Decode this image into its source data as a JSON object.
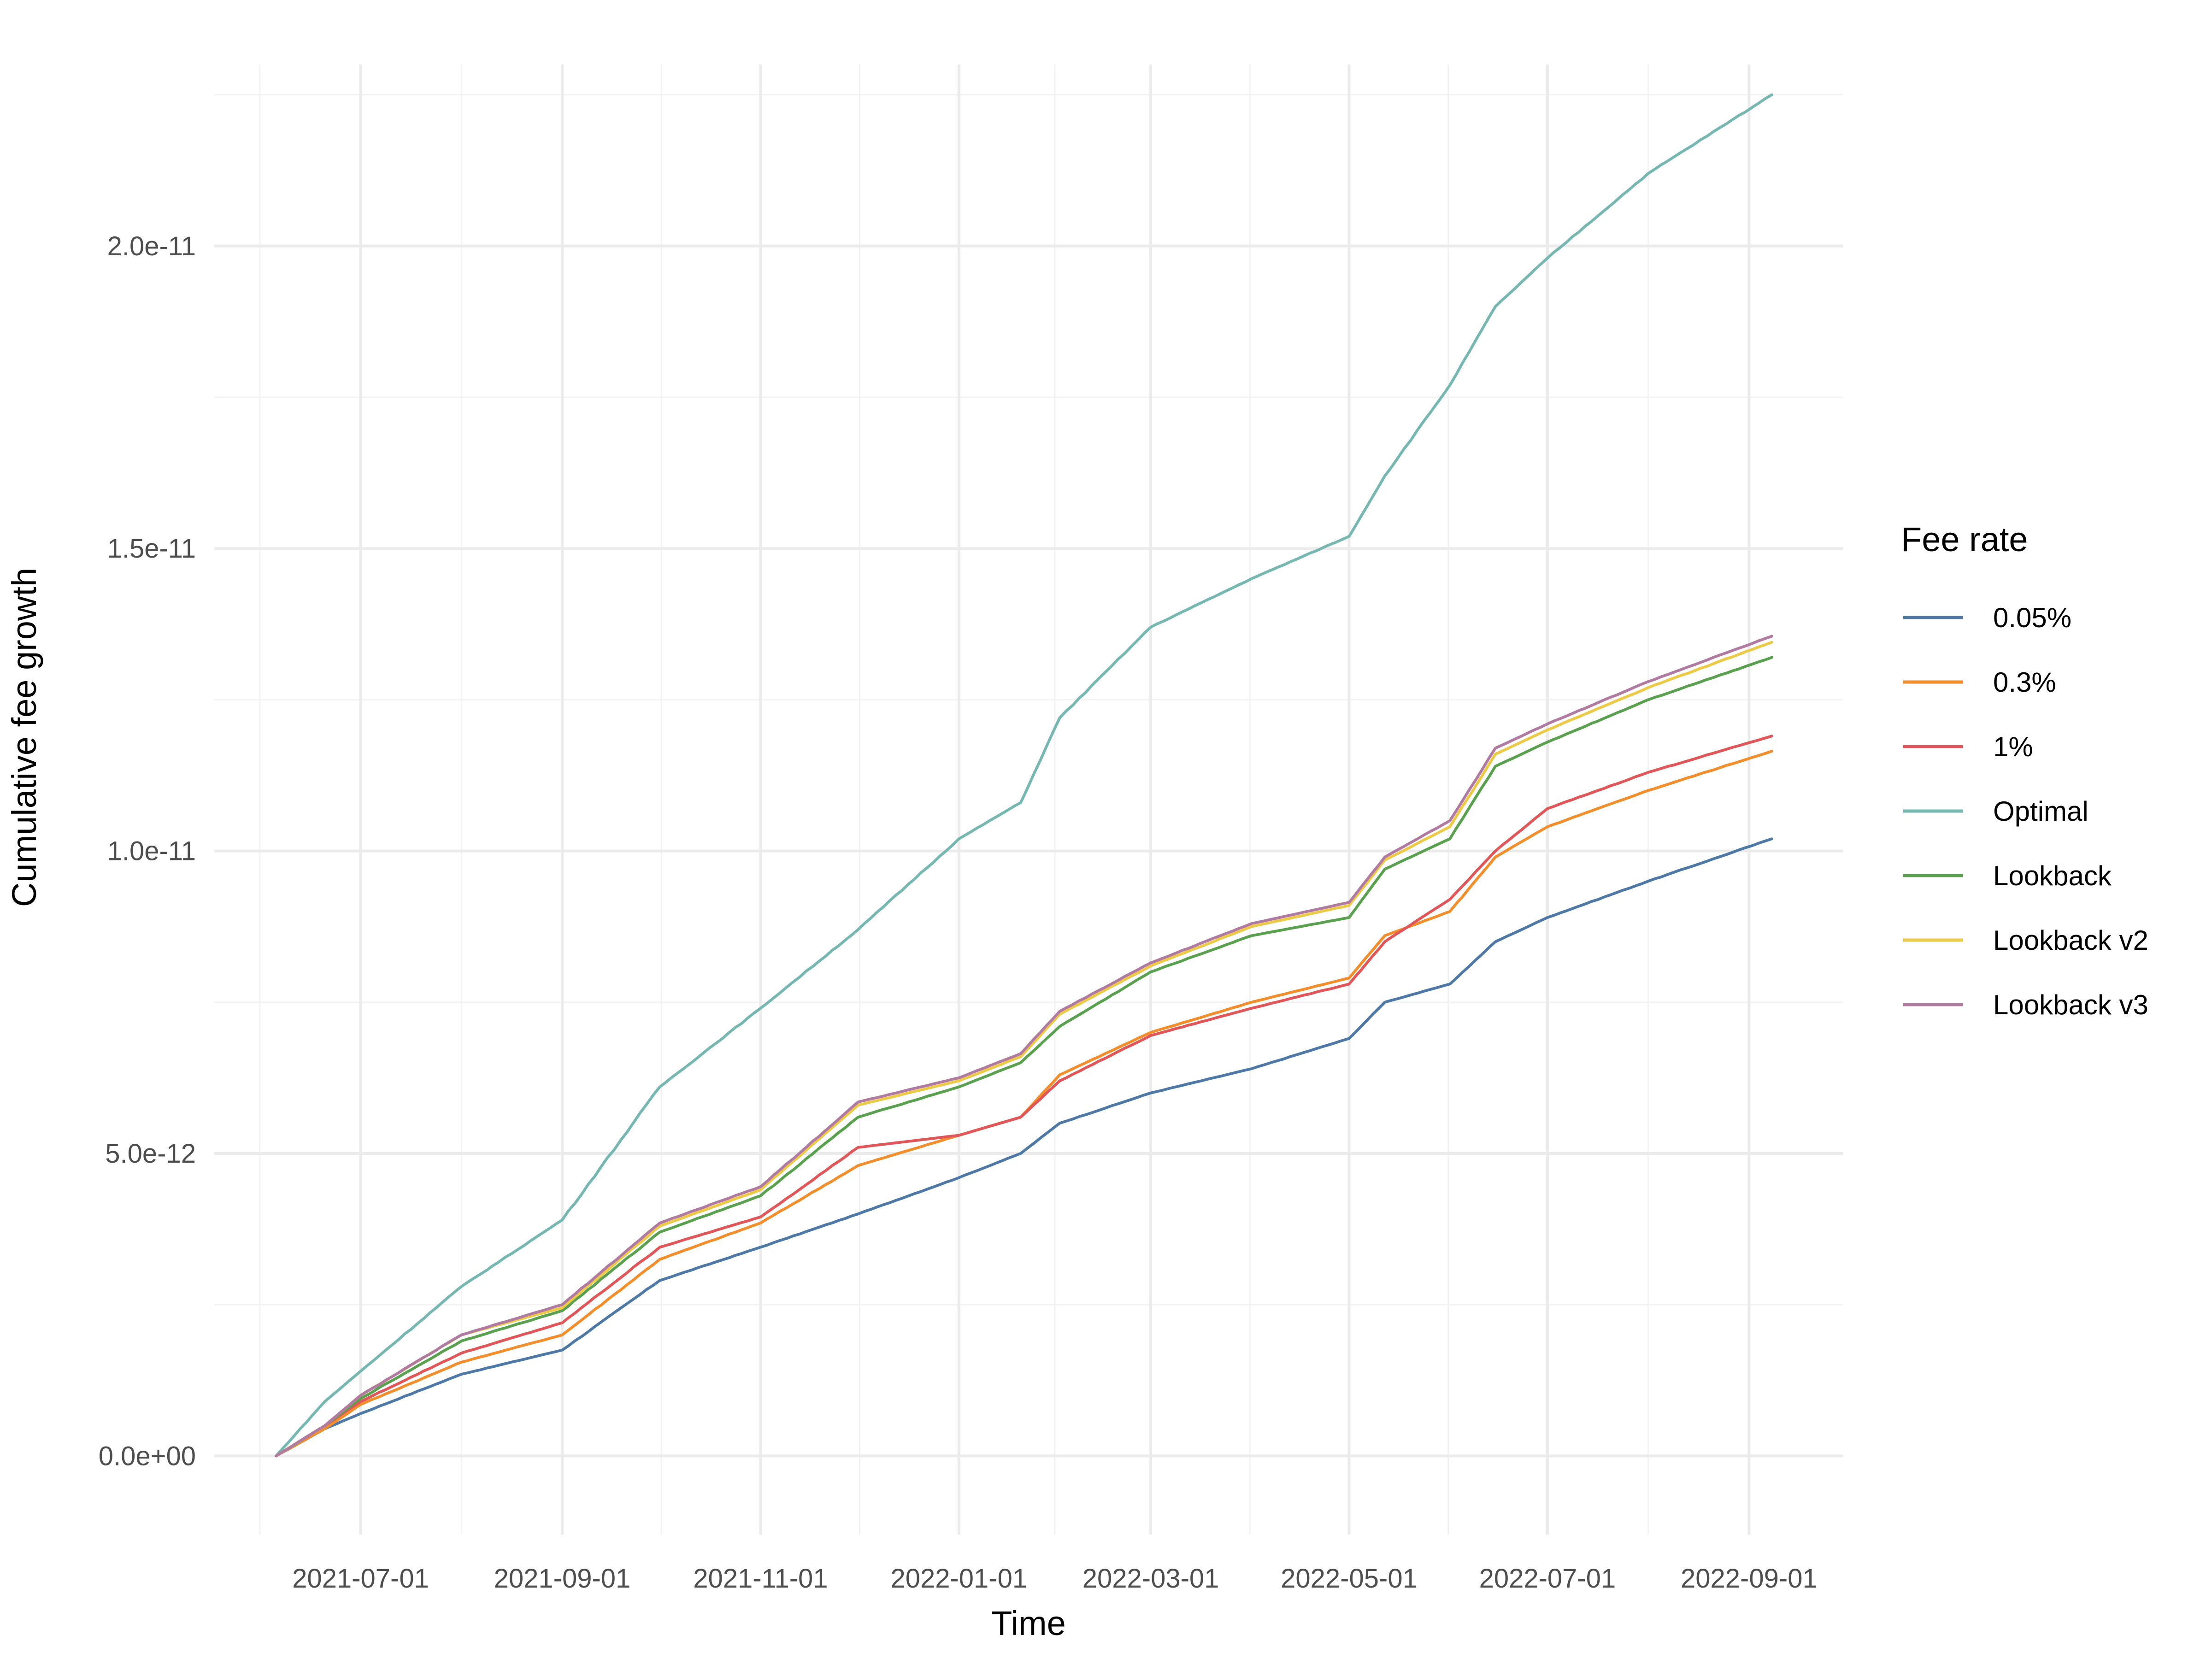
{
  "chart_data": {
    "type": "line",
    "title": "",
    "xlabel": "Time",
    "ylabel": "Cumulative fee growth",
    "x_type": "date",
    "x_ticks": [
      "2021-07-01",
      "2021-09-01",
      "2021-11-01",
      "2022-01-01",
      "2022-03-01",
      "2022-05-01",
      "2022-07-01",
      "2022-09-01"
    ],
    "xlim": [
      "2021-05-17",
      "2022-09-30"
    ],
    "y_ticks": [
      0,
      5e-12,
      1e-11,
      1.5e-11,
      2e-11
    ],
    "y_tick_labels": [
      "0.0e+00",
      "5.0e-12",
      "1.0e-11",
      "1.5e-11",
      "2.0e-11"
    ],
    "ylim": [
      -1.3e-12,
      2.3e-11
    ],
    "grid": true,
    "legend": {
      "title": "Fee rate",
      "position": "right"
    },
    "x": [
      "2021-06-05",
      "2021-06-20",
      "2021-07-01",
      "2021-08-01",
      "2021-09-01",
      "2021-10-01",
      "2021-11-01",
      "2021-12-01",
      "2022-01-01",
      "2022-01-20",
      "2022-02-01",
      "2022-03-01",
      "2022-04-01",
      "2022-05-01",
      "2022-05-12",
      "2022-06-01",
      "2022-06-15",
      "2022-07-01",
      "2022-08-01",
      "2022-09-08"
    ],
    "series": [
      {
        "name": "0.05%",
        "color": "#4e79a7",
        "values": [
          0,
          4.5e-13,
          7e-13,
          1.35e-12,
          1.75e-12,
          2.9e-12,
          3.45e-12,
          4e-12,
          4.6e-12,
          5e-12,
          5.5e-12,
          6e-12,
          6.4e-12,
          6.9e-12,
          7.5e-12,
          7.8e-12,
          8.5e-12,
          8.9e-12,
          9.5e-12,
          1.02e-11
        ]
      },
      {
        "name": "0.3%",
        "color": "#f28e2b",
        "values": [
          0,
          4.5e-13,
          8.5e-13,
          1.55e-12,
          2e-12,
          3.25e-12,
          3.85e-12,
          4.8e-12,
          5.3e-12,
          5.6e-12,
          6.3e-12,
          7e-12,
          7.5e-12,
          7.9e-12,
          8.6e-12,
          9e-12,
          9.9e-12,
          1.04e-11,
          1.1e-11,
          1.165e-11
        ]
      },
      {
        "name": "1%",
        "color": "#e15759",
        "values": [
          0,
          5e-13,
          9e-13,
          1.7e-12,
          2.2e-12,
          3.45e-12,
          3.95e-12,
          5.1e-12,
          5.3e-12,
          5.6e-12,
          6.2e-12,
          6.95e-12,
          7.4e-12,
          7.8e-12,
          8.5e-12,
          9.2e-12,
          1e-11,
          1.07e-11,
          1.13e-11,
          1.19e-11
        ]
      },
      {
        "name": "Optimal",
        "color": "#76b7b2",
        "values": [
          0,
          9e-13,
          1.4e-12,
          2.8e-12,
          3.9e-12,
          6.1e-12,
          7.4e-12,
          8.7e-12,
          1.02e-11,
          1.08e-11,
          1.22e-11,
          1.37e-11,
          1.45e-11,
          1.52e-11,
          1.62e-11,
          1.77e-11,
          1.9e-11,
          1.98e-11,
          2.12e-11,
          2.25e-11
        ]
      },
      {
        "name": "Lookback",
        "color": "#59a14f",
        "values": [
          0,
          5e-13,
          9.5e-13,
          1.9e-12,
          2.4e-12,
          3.7e-12,
          4.3e-12,
          5.6e-12,
          6.1e-12,
          6.5e-12,
          7.1e-12,
          8e-12,
          8.6e-12,
          8.9e-12,
          9.7e-12,
          1.02e-11,
          1.14e-11,
          1.18e-11,
          1.25e-11,
          1.32e-11
        ]
      },
      {
        "name": "Lookback v2",
        "color": "#edc948",
        "values": [
          0,
          5e-13,
          1e-12,
          2e-12,
          2.45e-12,
          3.8e-12,
          4.4e-12,
          5.8e-12,
          6.2e-12,
          6.6e-12,
          7.3e-12,
          8.1e-12,
          8.75e-12,
          9.1e-12,
          9.85e-12,
          1.04e-11,
          1.16e-11,
          1.2e-11,
          1.27e-11,
          1.345e-11
        ]
      },
      {
        "name": "Lookback v3",
        "color": "#b07aa1",
        "values": [
          0,
          5e-13,
          1e-12,
          2e-12,
          2.5e-12,
          3.85e-12,
          4.45e-12,
          5.85e-12,
          6.25e-12,
          6.65e-12,
          7.35e-12,
          8.15e-12,
          8.8e-12,
          9.15e-12,
          9.9e-12,
          1.05e-11,
          1.17e-11,
          1.21e-11,
          1.28e-11,
          1.355e-11
        ]
      }
    ]
  }
}
